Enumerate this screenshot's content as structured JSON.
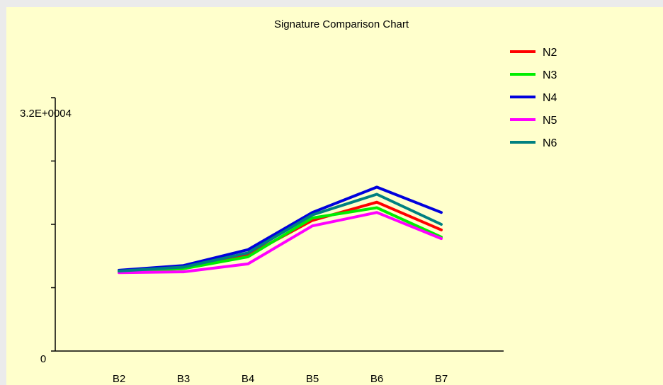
{
  "chart_data": {
    "type": "line",
    "title": "Signature Comparison Chart",
    "xlabel": "",
    "ylabel": "",
    "categories": [
      "B2",
      "B3",
      "B4",
      "B5",
      "B6",
      "B7"
    ],
    "ylim": [
      0,
      32000
    ],
    "y_tick_labels": {
      "max": "3.2E+0004",
      "min": "0"
    },
    "y_ticks": [
      0,
      8000,
      16000,
      24000,
      32000
    ],
    "grid": false,
    "legend_position": "top-right",
    "series": [
      {
        "name": "N2",
        "color": "#ff0000",
        "values": [
          10000,
          10400,
          12100,
          16500,
          18800,
          15300
        ]
      },
      {
        "name": "N3",
        "color": "#00ee00",
        "values": [
          10000,
          10400,
          11900,
          16800,
          18100,
          14400
        ]
      },
      {
        "name": "N4",
        "color": "#0000dd",
        "values": [
          10200,
          10800,
          12800,
          17500,
          20700,
          17500
        ]
      },
      {
        "name": "N5",
        "color": "#ff00ff",
        "values": [
          9900,
          10000,
          11000,
          15800,
          17500,
          14200
        ]
      },
      {
        "name": "N6",
        "color": "#008080",
        "values": [
          10100,
          10600,
          12400,
          17200,
          19800,
          16000
        ]
      }
    ]
  }
}
